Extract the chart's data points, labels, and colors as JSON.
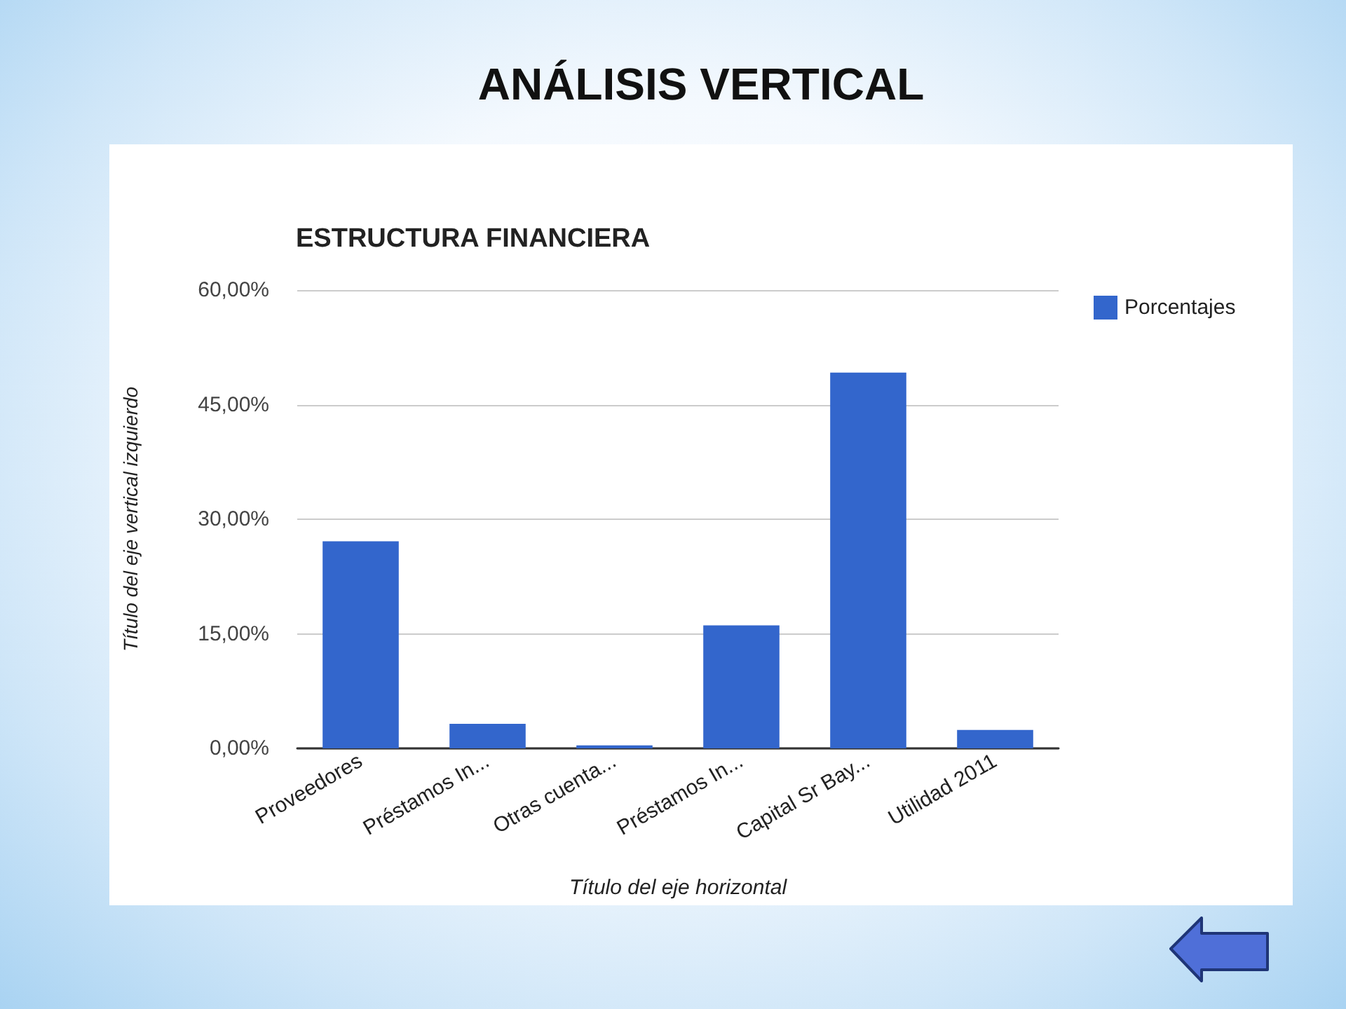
{
  "chart_data": {
    "type": "bar",
    "title": "ANÁLISIS VERTICAL",
    "subtitle": "ESTRUCTURA FINANCIERA",
    "xlabel": "Título del eje horizontal",
    "ylabel": "Título del eje vertical izquierdo",
    "categories": [
      "Proveedores",
      "Préstamos In...",
      "Otras cuenta...",
      "Préstamos In...",
      "Capital Sr Bay...",
      "Utilidad 2011"
    ],
    "series": [
      {
        "name": "Porcentajes",
        "color": "#3366cc",
        "values": [
          27.1,
          3.2,
          0.4,
          16.1,
          49.2,
          2.4
        ]
      }
    ],
    "ylim": [
      0,
      60
    ],
    "yticks": [
      {
        "value": 0,
        "label": "0,00%"
      },
      {
        "value": 15,
        "label": "15,00%"
      },
      {
        "value": 30,
        "label": "30,00%"
      },
      {
        "value": 45,
        "label": "45,00%"
      },
      {
        "value": 60,
        "label": "60,00%"
      }
    ],
    "grid": "y",
    "legend": "top right"
  }
}
